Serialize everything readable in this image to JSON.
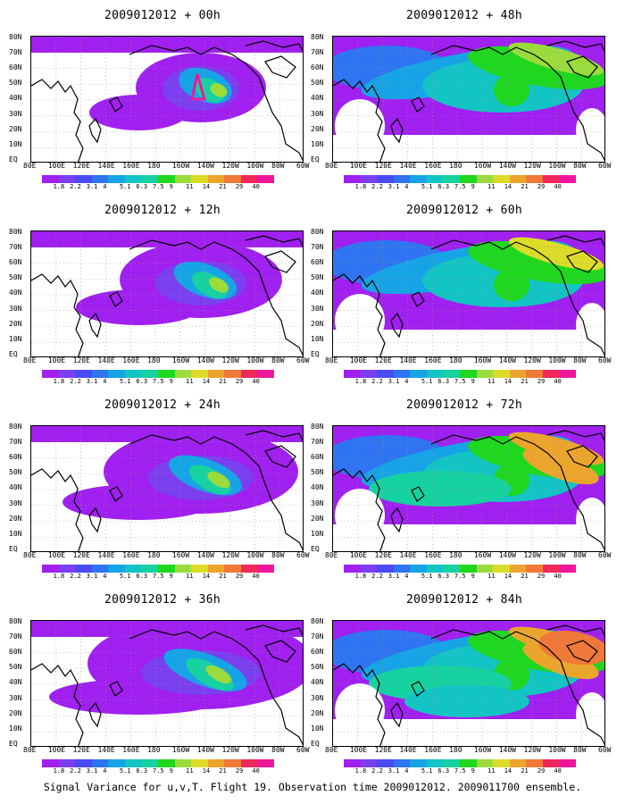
{
  "panels": [
    {
      "title": "2009012012 + 00h",
      "intensity": 1
    },
    {
      "title": "2009012012 + 12h",
      "intensity": 2
    },
    {
      "title": "2009012012 + 24h",
      "intensity": 3
    },
    {
      "title": "2009012012 + 36h",
      "intensity": 4
    },
    {
      "title": "2009012012 + 48h",
      "intensity": 5
    },
    {
      "title": "2009012012 + 60h",
      "intensity": 6
    },
    {
      "title": "2009012012 + 72h",
      "intensity": 7
    },
    {
      "title": "2009012012 + 84h",
      "intensity": 8
    }
  ],
  "lat_labels": [
    "80N",
    "70N",
    "60N",
    "50N",
    "40N",
    "30N",
    "20N",
    "10N",
    "EQ"
  ],
  "lon_labels": [
    "80E",
    "100E",
    "120E",
    "140E",
    "160E",
    "180",
    "160W",
    "140W",
    "120W",
    "100W",
    "80W",
    "60W"
  ],
  "colorbar": {
    "labels": [
      "1.8",
      "2.2",
      "3.1",
      "4",
      "5.1",
      "6.3",
      "7.5",
      "9",
      "11",
      "14",
      "21",
      "29",
      "40"
    ],
    "colors": [
      "#a020f0",
      "#7b3ff0",
      "#4a4af5",
      "#2f74f0",
      "#16a4e6",
      "#13c4c4",
      "#16d2a0",
      "#1ed71e",
      "#9bdc3c",
      "#dcdc28",
      "#eba52d",
      "#f07838",
      "#f0285a",
      "#f0169c"
    ]
  },
  "caption": "Signal Variance for u,v,T. Flight 19. Observation time 2009012012. 2009011700 ensemble."
}
